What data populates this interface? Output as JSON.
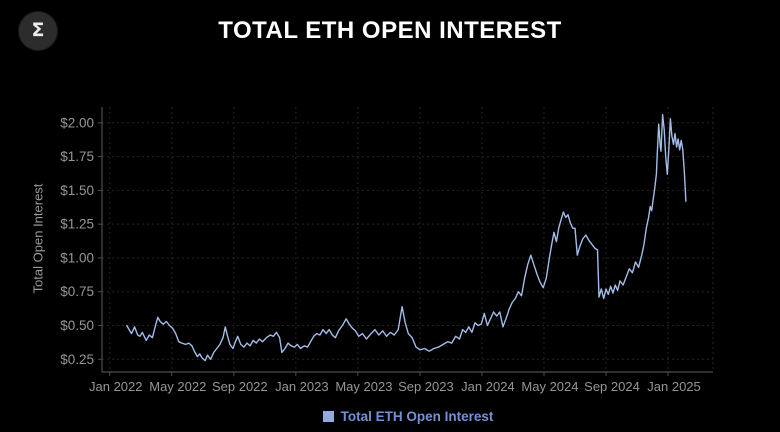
{
  "header": {
    "title": "TOTAL ETH OPEN INTEREST",
    "logo_glyph": "Σ"
  },
  "legend": {
    "label": "Total ETH Open Interest"
  },
  "colors": {
    "background": "#000000",
    "title_text": "#ffffff",
    "line": "#a3bce8",
    "axis_line": "#4d4d4d",
    "gridline": "#252525",
    "tick_label": "#969696",
    "axis_title": "#9a9a9a",
    "legend_text": "#7292d8",
    "legend_swatch": "#92abdf",
    "logo_background": "#2c2c2c",
    "logo_glyph": "#ededed"
  },
  "chart_data": {
    "type": "line",
    "title": "TOTAL ETH OPEN INTEREST",
    "xlabel": "",
    "ylabel": "Total Open Interest",
    "legend_entries": [
      "Total ETH Open Interest"
    ],
    "legend_position": "bottom-center",
    "grid": true,
    "x_unit": "months since Jan 2022",
    "xlim": [
      -0.5,
      38.9
    ],
    "ylim": [
      0.156,
      2.117
    ],
    "x_ticks": [
      {
        "m": 0,
        "label": "Jan 2022"
      },
      {
        "m": 4,
        "label": "May 2022"
      },
      {
        "m": 8,
        "label": "Sep 2022"
      },
      {
        "m": 12,
        "label": "Jan 2023"
      },
      {
        "m": 16,
        "label": "May 2023"
      },
      {
        "m": 20,
        "label": "Sep 2023"
      },
      {
        "m": 24,
        "label": "Jan 2024"
      },
      {
        "m": 28,
        "label": "May 2024"
      },
      {
        "m": 32,
        "label": "Sep 2024"
      },
      {
        "m": 36,
        "label": "Jan 2025"
      }
    ],
    "y_ticks": [
      {
        "v": 0.25,
        "label": "$0.25"
      },
      {
        "v": 0.5,
        "label": "$0.50"
      },
      {
        "v": 0.75,
        "label": "$0.75"
      },
      {
        "v": 1.0,
        "label": "$1.00"
      },
      {
        "v": 1.25,
        "label": "$1.25"
      },
      {
        "v": 1.5,
        "label": "$1.50"
      },
      {
        "v": 1.75,
        "label": "$1.75"
      },
      {
        "v": 2.0,
        "label": "$2.00"
      }
    ],
    "series": [
      {
        "name": "Total ETH Open Interest",
        "points": [
          [
            1.1,
            0.5
          ],
          [
            1.25,
            0.47
          ],
          [
            1.4,
            0.44
          ],
          [
            1.6,
            0.49
          ],
          [
            1.8,
            0.43
          ],
          [
            1.95,
            0.42
          ],
          [
            2.1,
            0.45
          ],
          [
            2.35,
            0.39
          ],
          [
            2.55,
            0.43
          ],
          [
            2.75,
            0.41
          ],
          [
            2.95,
            0.5
          ],
          [
            3.1,
            0.56
          ],
          [
            3.25,
            0.53
          ],
          [
            3.45,
            0.51
          ],
          [
            3.65,
            0.53
          ],
          [
            3.85,
            0.5
          ],
          [
            4.05,
            0.48
          ],
          [
            4.25,
            0.44
          ],
          [
            4.45,
            0.38
          ],
          [
            4.65,
            0.37
          ],
          [
            4.9,
            0.36
          ],
          [
            5.1,
            0.37
          ],
          [
            5.3,
            0.35
          ],
          [
            5.5,
            0.3
          ],
          [
            5.65,
            0.27
          ],
          [
            5.8,
            0.29
          ],
          [
            5.95,
            0.26
          ],
          [
            6.15,
            0.24
          ],
          [
            6.3,
            0.28
          ],
          [
            6.5,
            0.25
          ],
          [
            6.7,
            0.3
          ],
          [
            6.9,
            0.33
          ],
          [
            7.1,
            0.36
          ],
          [
            7.3,
            0.41
          ],
          [
            7.45,
            0.49
          ],
          [
            7.6,
            0.42
          ],
          [
            7.75,
            0.36
          ],
          [
            7.95,
            0.33
          ],
          [
            8.1,
            0.38
          ],
          [
            8.25,
            0.42
          ],
          [
            8.45,
            0.36
          ],
          [
            8.65,
            0.34
          ],
          [
            8.85,
            0.37
          ],
          [
            9.05,
            0.35
          ],
          [
            9.25,
            0.39
          ],
          [
            9.45,
            0.37
          ],
          [
            9.65,
            0.4
          ],
          [
            9.85,
            0.38
          ],
          [
            10.1,
            0.41
          ],
          [
            10.35,
            0.43
          ],
          [
            10.55,
            0.42
          ],
          [
            10.75,
            0.45
          ],
          [
            10.95,
            0.41
          ],
          [
            11.1,
            0.3
          ],
          [
            11.3,
            0.33
          ],
          [
            11.5,
            0.37
          ],
          [
            11.7,
            0.35
          ],
          [
            11.9,
            0.34
          ],
          [
            12.1,
            0.36
          ],
          [
            12.3,
            0.33
          ],
          [
            12.55,
            0.35
          ],
          [
            12.75,
            0.34
          ],
          [
            12.95,
            0.38
          ],
          [
            13.15,
            0.42
          ],
          [
            13.35,
            0.44
          ],
          [
            13.55,
            0.43
          ],
          [
            13.75,
            0.47
          ],
          [
            13.95,
            0.44
          ],
          [
            14.15,
            0.47
          ],
          [
            14.35,
            0.43
          ],
          [
            14.55,
            0.41
          ],
          [
            14.75,
            0.46
          ],
          [
            15.0,
            0.5
          ],
          [
            15.25,
            0.55
          ],
          [
            15.45,
            0.51
          ],
          [
            15.65,
            0.48
          ],
          [
            15.85,
            0.46
          ],
          [
            16.05,
            0.42
          ],
          [
            16.3,
            0.44
          ],
          [
            16.55,
            0.4
          ],
          [
            16.85,
            0.44
          ],
          [
            17.1,
            0.47
          ],
          [
            17.35,
            0.43
          ],
          [
            17.6,
            0.46
          ],
          [
            17.85,
            0.42
          ],
          [
            18.1,
            0.45
          ],
          [
            18.35,
            0.43
          ],
          [
            18.6,
            0.47
          ],
          [
            18.85,
            0.64
          ],
          [
            19.05,
            0.52
          ],
          [
            19.25,
            0.44
          ],
          [
            19.5,
            0.41
          ],
          [
            19.75,
            0.34
          ],
          [
            20.0,
            0.32
          ],
          [
            20.3,
            0.33
          ],
          [
            20.6,
            0.31
          ],
          [
            20.9,
            0.33
          ],
          [
            21.2,
            0.34
          ],
          [
            21.5,
            0.36
          ],
          [
            21.8,
            0.38
          ],
          [
            22.05,
            0.37
          ],
          [
            22.3,
            0.42
          ],
          [
            22.55,
            0.4
          ],
          [
            22.75,
            0.47
          ],
          [
            22.95,
            0.45
          ],
          [
            23.15,
            0.49
          ],
          [
            23.35,
            0.45
          ],
          [
            23.55,
            0.52
          ],
          [
            23.75,
            0.5
          ],
          [
            23.95,
            0.51
          ],
          [
            24.15,
            0.59
          ],
          [
            24.35,
            0.5
          ],
          [
            24.55,
            0.55
          ],
          [
            24.75,
            0.6
          ],
          [
            24.95,
            0.57
          ],
          [
            25.15,
            0.6
          ],
          [
            25.35,
            0.49
          ],
          [
            25.55,
            0.55
          ],
          [
            25.75,
            0.62
          ],
          [
            25.95,
            0.67
          ],
          [
            26.15,
            0.7
          ],
          [
            26.35,
            0.75
          ],
          [
            26.55,
            0.72
          ],
          [
            26.75,
            0.85
          ],
          [
            26.95,
            0.95
          ],
          [
            27.15,
            1.02
          ],
          [
            27.35,
            0.95
          ],
          [
            27.55,
            0.88
          ],
          [
            27.75,
            0.82
          ],
          [
            27.95,
            0.78
          ],
          [
            28.15,
            0.85
          ],
          [
            28.35,
            1.0
          ],
          [
            28.5,
            1.1
          ],
          [
            28.65,
            1.19
          ],
          [
            28.8,
            1.12
          ],
          [
            28.95,
            1.22
          ],
          [
            29.1,
            1.28
          ],
          [
            29.25,
            1.34
          ],
          [
            29.4,
            1.3
          ],
          [
            29.55,
            1.32
          ],
          [
            29.7,
            1.26
          ],
          [
            29.85,
            1.22
          ],
          [
            30.0,
            1.22
          ],
          [
            30.15,
            1.02
          ],
          [
            30.3,
            1.08
          ],
          [
            30.5,
            1.14
          ],
          [
            30.7,
            1.17
          ],
          [
            30.9,
            1.13
          ],
          [
            31.1,
            1.1
          ],
          [
            31.3,
            1.07
          ],
          [
            31.45,
            1.06
          ],
          [
            31.55,
            0.71
          ],
          [
            31.7,
            0.77
          ],
          [
            31.85,
            0.7
          ],
          [
            32.0,
            0.77
          ],
          [
            32.15,
            0.73
          ],
          [
            32.3,
            0.79
          ],
          [
            32.45,
            0.74
          ],
          [
            32.6,
            0.8
          ],
          [
            32.75,
            0.76
          ],
          [
            32.9,
            0.83
          ],
          [
            33.1,
            0.8
          ],
          [
            33.3,
            0.86
          ],
          [
            33.5,
            0.92
          ],
          [
            33.7,
            0.89
          ],
          [
            33.9,
            0.97
          ],
          [
            34.1,
            0.93
          ],
          [
            34.3,
            1.02
          ],
          [
            34.45,
            1.1
          ],
          [
            34.6,
            1.22
          ],
          [
            34.75,
            1.3
          ],
          [
            34.85,
            1.38
          ],
          [
            34.95,
            1.35
          ],
          [
            35.05,
            1.44
          ],
          [
            35.15,
            1.52
          ],
          [
            35.25,
            1.62
          ],
          [
            35.3,
            1.76
          ],
          [
            35.4,
            1.99
          ],
          [
            35.5,
            1.82
          ],
          [
            35.55,
            1.79
          ],
          [
            35.65,
            2.06
          ],
          [
            35.75,
            1.95
          ],
          [
            35.85,
            1.75
          ],
          [
            35.95,
            1.62
          ],
          [
            36.05,
            1.8
          ],
          [
            36.15,
            2.03
          ],
          [
            36.25,
            1.9
          ],
          [
            36.35,
            1.84
          ],
          [
            36.45,
            1.92
          ],
          [
            36.55,
            1.82
          ],
          [
            36.65,
            1.88
          ],
          [
            36.75,
            1.8
          ],
          [
            36.85,
            1.87
          ],
          [
            36.95,
            1.8
          ],
          [
            37.05,
            1.64
          ],
          [
            37.15,
            1.42
          ]
        ]
      }
    ]
  }
}
